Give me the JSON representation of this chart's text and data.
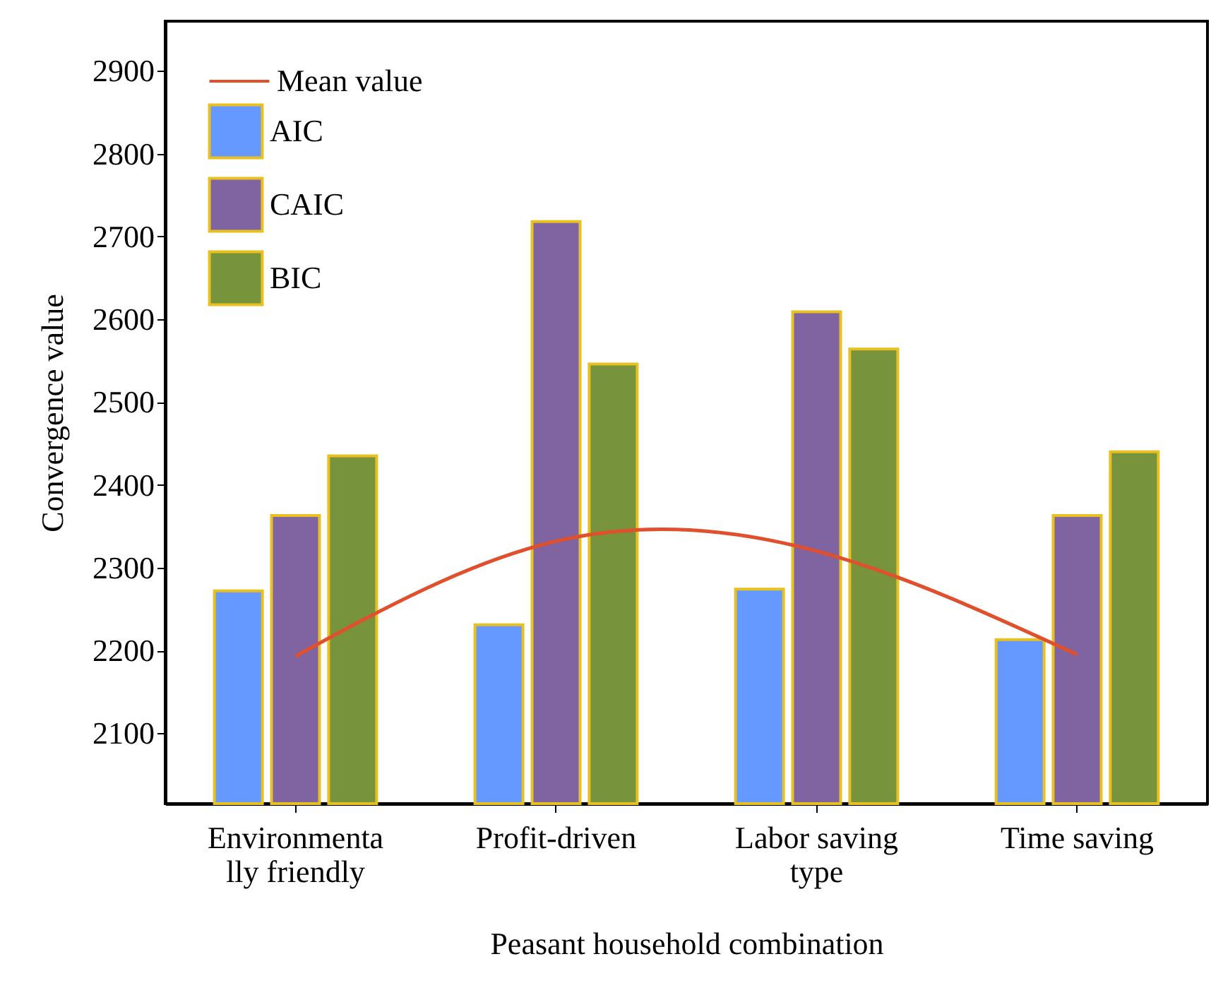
{
  "chart_data": {
    "type": "bar",
    "xlabel": "Peasant household combination",
    "ylabel": "Convergence value",
    "categories": [
      "Environmenta\nlly friendly",
      "Profit-driven",
      "Labor saving\ntype",
      "Time saving"
    ],
    "series": [
      {
        "name": "Mean value",
        "type": "line",
        "color": "#e0502c",
        "values": [
          2193,
          2332,
          2320,
          2195
        ]
      },
      {
        "name": "AIC",
        "color": "#6699ff",
        "values": [
          2272,
          2231,
          2274,
          2213
        ]
      },
      {
        "name": "CAIC",
        "color": "#8064a2",
        "values": [
          2363,
          2718,
          2609,
          2363
        ]
      },
      {
        "name": "BIC",
        "color": "#77933c",
        "values": [
          2435,
          2546,
          2564,
          2440
        ]
      }
    ],
    "ylim": [
      2015,
      2960
    ],
    "yticks": [
      2100,
      2200,
      2300,
      2400,
      2500,
      2600,
      2700,
      2800,
      2900
    ],
    "grid": false,
    "legend": "top left",
    "marker": "none",
    "line_style": "solid"
  }
}
